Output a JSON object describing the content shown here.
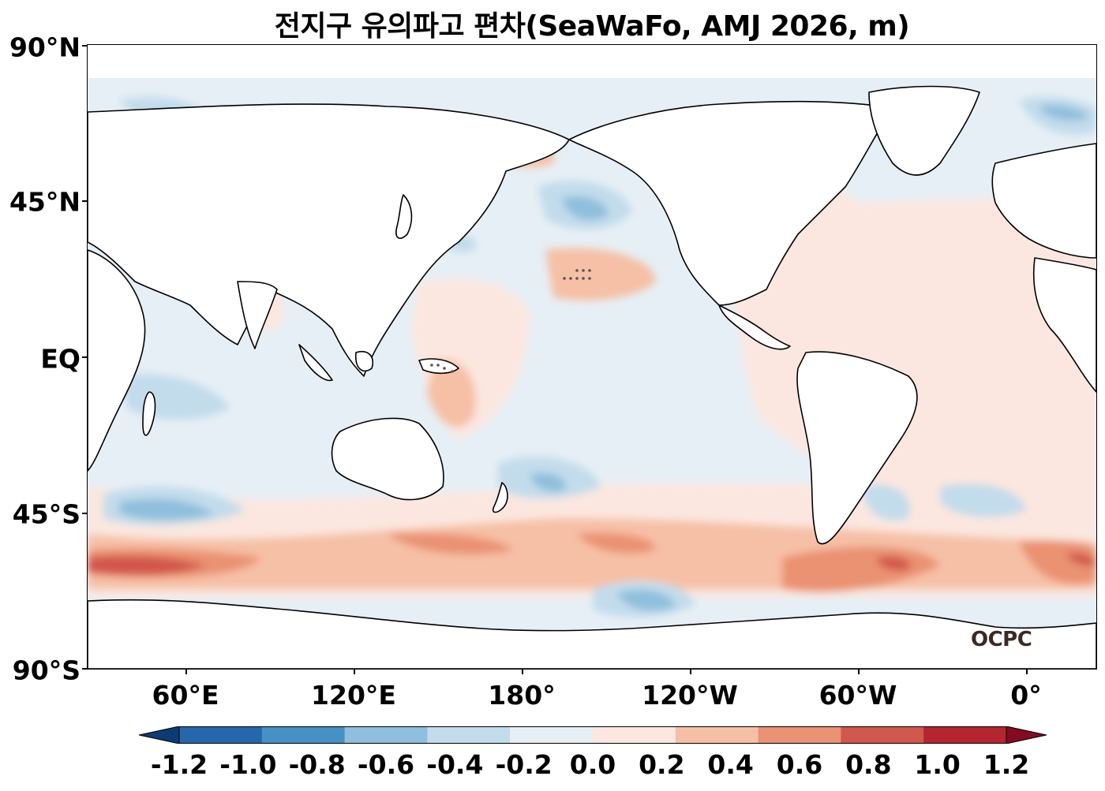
{
  "title": "전지구 유의파고 편차(SeaWaFo, AMJ 2026, m)",
  "logo": "OCPC",
  "y_ticks": [
    "90°N",
    "45°N",
    "EQ",
    "45°S",
    "90°S"
  ],
  "x_ticks": [
    "60°E",
    "120°E",
    "180°",
    "120°W",
    "60°W",
    "0°"
  ],
  "colorbar": {
    "labels": [
      "-1.2",
      "-1.0",
      "-0.8",
      "-0.6",
      "-0.4",
      "-0.2",
      "0.0",
      "0.2",
      "0.4",
      "0.6",
      "0.8",
      "1.0",
      "1.2"
    ],
    "colors": [
      "#0d3b73",
      "#2468ab",
      "#4692c5",
      "#8ebfdc",
      "#c2dcec",
      "#e6eff5",
      "#fbe7df",
      "#f6c0a6",
      "#ea9272",
      "#d2574c",
      "#b42530",
      "#840b22"
    ],
    "extend": "both"
  },
  "chart_data": {
    "type": "heatmap",
    "title": "전지구 유의파고 편차(SeaWaFo, AMJ 2026, m)",
    "xlabel": "",
    "ylabel": "",
    "xlim_lon": [
      25,
      385
    ],
    "ylim_lat": [
      -90,
      90
    ],
    "levels": [
      -1.2,
      -1.0,
      -0.8,
      -0.6,
      -0.4,
      -0.2,
      0.0,
      0.2,
      0.4,
      0.6,
      0.8,
      1.0,
      1.2
    ],
    "grid": false
  }
}
